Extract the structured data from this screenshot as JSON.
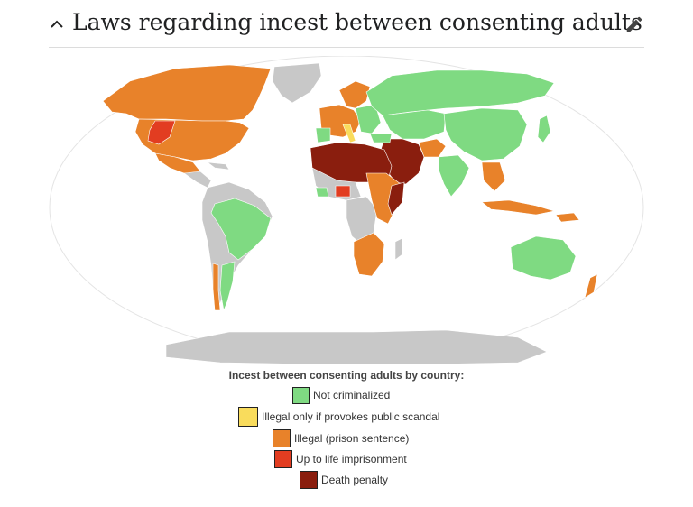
{
  "header": {
    "title": "Laws regarding incest between consenting adults"
  },
  "legend": {
    "title": "Incest between consenting adults by country:",
    "items": [
      {
        "label": "Not criminalized",
        "color": "#7fda82"
      },
      {
        "label": "Illegal only if provokes public scandal",
        "color": "#f9dc5c"
      },
      {
        "label": "Illegal (prison sentence)",
        "color": "#e8822a"
      },
      {
        "label": "Up to life imprisonment",
        "color": "#e23d21"
      },
      {
        "label": "Death penalty",
        "color": "#8a1e0e"
      }
    ]
  },
  "colors": {
    "no_data": "#c8c8c8",
    "ocean": "#ffffff",
    "border": "#ffffff"
  },
  "icons": {
    "collapse": "chevron-up-icon",
    "edit": "pencil-icon"
  }
}
